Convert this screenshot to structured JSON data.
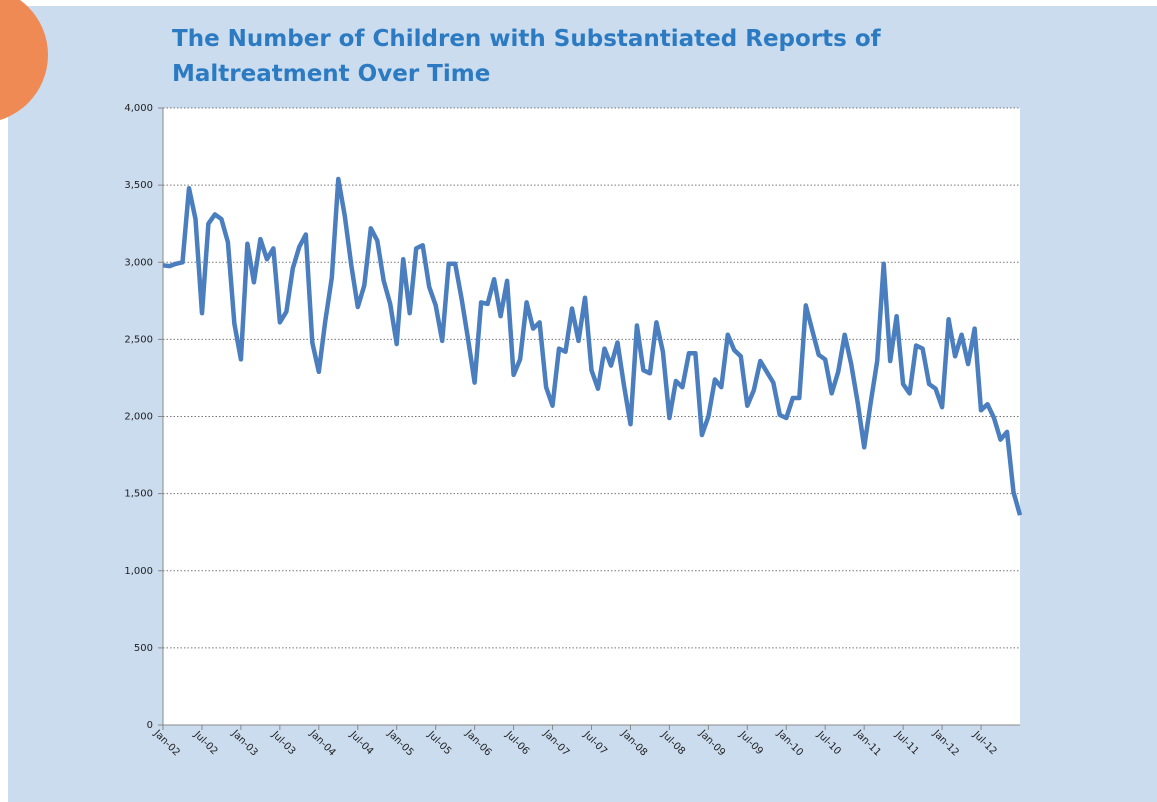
{
  "chart_data": {
    "type": "line",
    "title_lines": [
      "The Number of Children with Substantiated Reports of",
      "Maltreatment Over Time"
    ],
    "categories": [
      "Jan-02",
      null,
      null,
      null,
      null,
      null,
      "Jul-02",
      null,
      null,
      null,
      null,
      null,
      "Jan-03",
      null,
      null,
      null,
      null,
      null,
      "Jul-03",
      null,
      null,
      null,
      null,
      null,
      "Jan-04",
      null,
      null,
      null,
      null,
      null,
      "Jul-04",
      null,
      null,
      null,
      null,
      null,
      "Jan-05",
      null,
      null,
      null,
      null,
      null,
      "Jul-05",
      null,
      null,
      null,
      null,
      null,
      "Jan-06",
      null,
      null,
      null,
      null,
      null,
      "Jul-06",
      null,
      null,
      null,
      null,
      null,
      "Jan-07",
      null,
      null,
      null,
      null,
      null,
      "Jul-07",
      null,
      null,
      null,
      null,
      null,
      "Jan-08",
      null,
      null,
      null,
      null,
      null,
      "Jul-08",
      null,
      null,
      null,
      null,
      null,
      "Jan-09",
      null,
      null,
      null,
      null,
      null,
      "Jul-09",
      null,
      null,
      null,
      null,
      null,
      "Jan-10",
      null,
      null,
      null,
      null,
      null,
      "Jul-10",
      null,
      null,
      null,
      null,
      null,
      "Jan-11",
      null,
      null,
      null,
      null,
      null,
      "Jul-11",
      null,
      null,
      null,
      null,
      null,
      "Jan-12",
      null,
      null,
      null,
      null,
      null,
      "Jul-12",
      null,
      null,
      null,
      null,
      null,
      null
    ],
    "series": [
      {
        "color": "#4a7ebf",
        "values": [
          2980,
          2975,
          2990,
          3000,
          3480,
          3280,
          2670,
          3250,
          3310,
          3280,
          3130,
          2600,
          2370,
          3120,
          2870,
          3150,
          3020,
          3090,
          2610,
          2680,
          2960,
          3100,
          3180,
          2480,
          2290,
          2620,
          2900,
          3540,
          3300,
          2980,
          2710,
          2850,
          3220,
          3140,
          2880,
          2730,
          2470,
          3020,
          2670,
          3090,
          3110,
          2840,
          2720,
          2490,
          2990,
          2990,
          2760,
          2500,
          2220,
          2740,
          2730,
          2890,
          2650,
          2880,
          2270,
          2370,
          2740,
          2570,
          2610,
          2190,
          2070,
          2440,
          2420,
          2700,
          2490,
          2770,
          2300,
          2180,
          2440,
          2330,
          2480,
          2200,
          1950,
          2590,
          2300,
          2280,
          2610,
          2420,
          1990,
          2230,
          2190,
          2410,
          2410,
          1880,
          2000,
          2240,
          2190,
          2530,
          2430,
          2390,
          2070,
          2170,
          2360,
          2290,
          2220,
          2010,
          1990,
          2120,
          2120,
          2720,
          2560,
          2400,
          2370,
          2150,
          2290,
          2530,
          2340,
          2090,
          1800,
          2090,
          2360,
          2990,
          2360,
          2650,
          2210,
          2150,
          2460,
          2440,
          2210,
          2180,
          2060,
          2630,
          2390,
          2530,
          2340,
          2570,
          2040,
          2080,
          1990,
          1850,
          1900,
          1510,
          1360
        ]
      }
    ],
    "ylim": [
      0,
      4000
    ],
    "yticks": [
      0,
      {
        "value": 500,
        "label": "500"
      },
      {
        "value": 1000,
        "label": "1,000"
      },
      {
        "value": 1500,
        "label": "1,500"
      },
      {
        "value": 2000,
        "label": "2,000"
      },
      {
        "value": 2500,
        "label": "2,500"
      },
      {
        "value": 3000,
        "label": "3,000"
      },
      {
        "value": 3500,
        "label": "3,500"
      },
      {
        "value": 4000,
        "label": "4,000"
      }
    ],
    "grid": true
  }
}
